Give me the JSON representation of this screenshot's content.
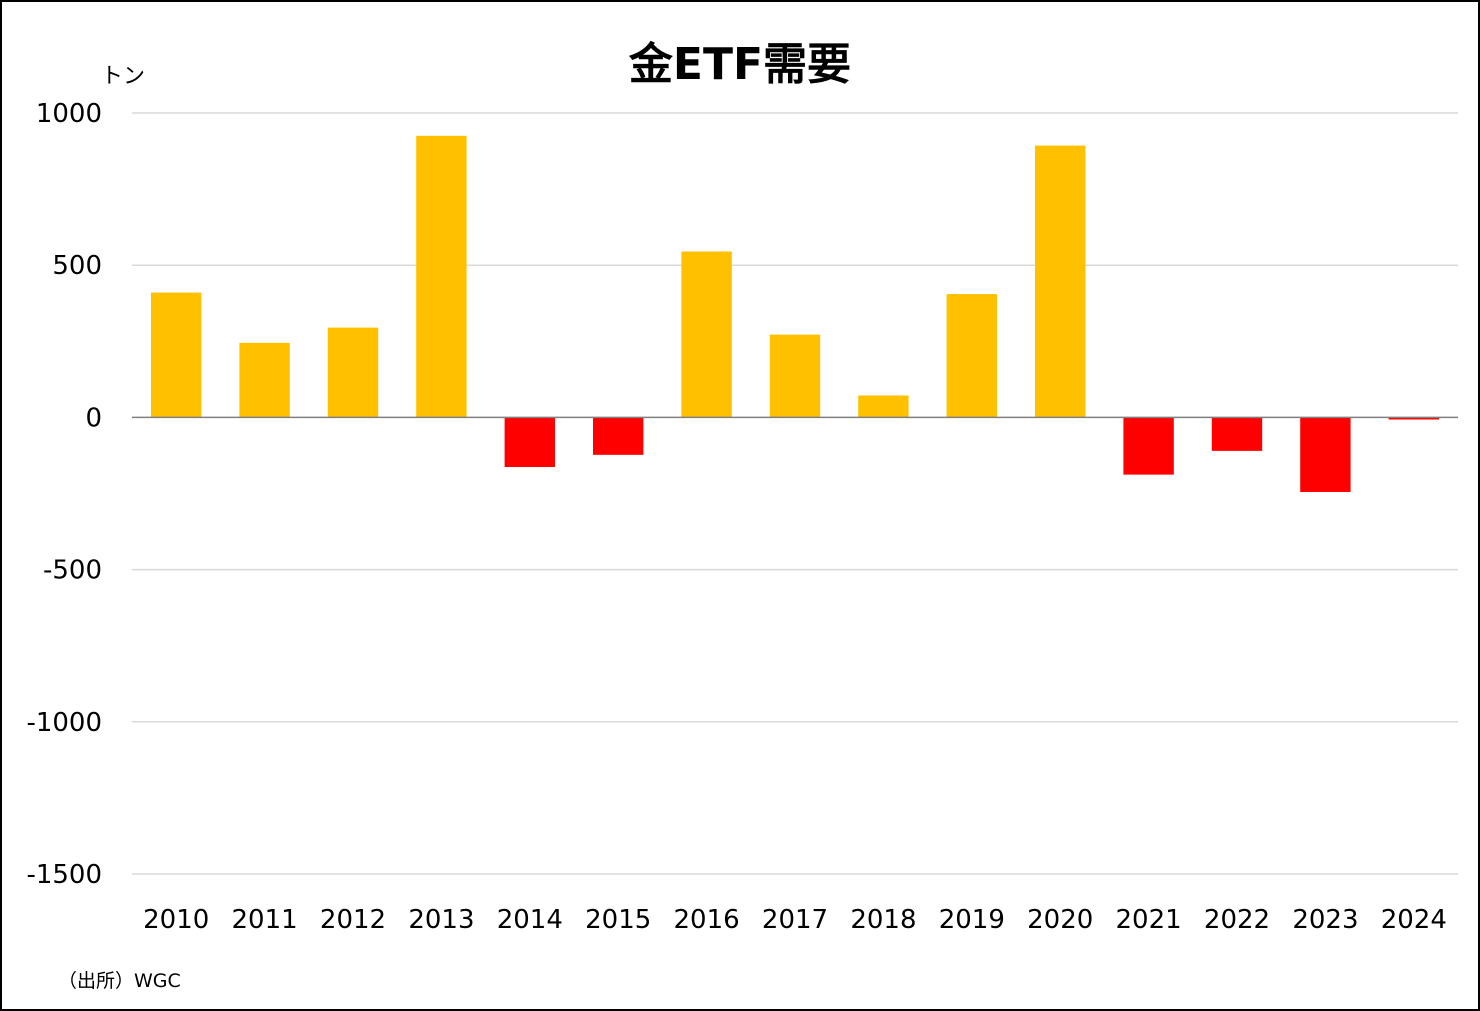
{
  "chart_data": {
    "type": "bar",
    "title": "金ETF需要",
    "unit_label": "トン",
    "source_note": "（出所）WGC",
    "categories": [
      "2010",
      "2011",
      "2012",
      "2013",
      "2014",
      "2015",
      "2016",
      "2017",
      "2018",
      "2019",
      "2020",
      "2021",
      "2022",
      "2023",
      "2024"
    ],
    "values": [
      410,
      245,
      295,
      925,
      -163,
      -123,
      545,
      272,
      72,
      405,
      893,
      -188,
      -110,
      -245,
      -7
    ],
    "ylim": [
      -1500,
      1000
    ],
    "yticks": [
      1000,
      500,
      0,
      -500,
      -1000,
      -1500
    ],
    "ytick_labels": [
      "1000",
      "500",
      "0",
      "-500",
      "-1000",
      "-1500"
    ],
    "grid": true,
    "colors": {
      "positive": "#FFC000",
      "negative": "#FF0000",
      "grid": "#D9D9D9",
      "axis": "#7F7F7F"
    }
  }
}
